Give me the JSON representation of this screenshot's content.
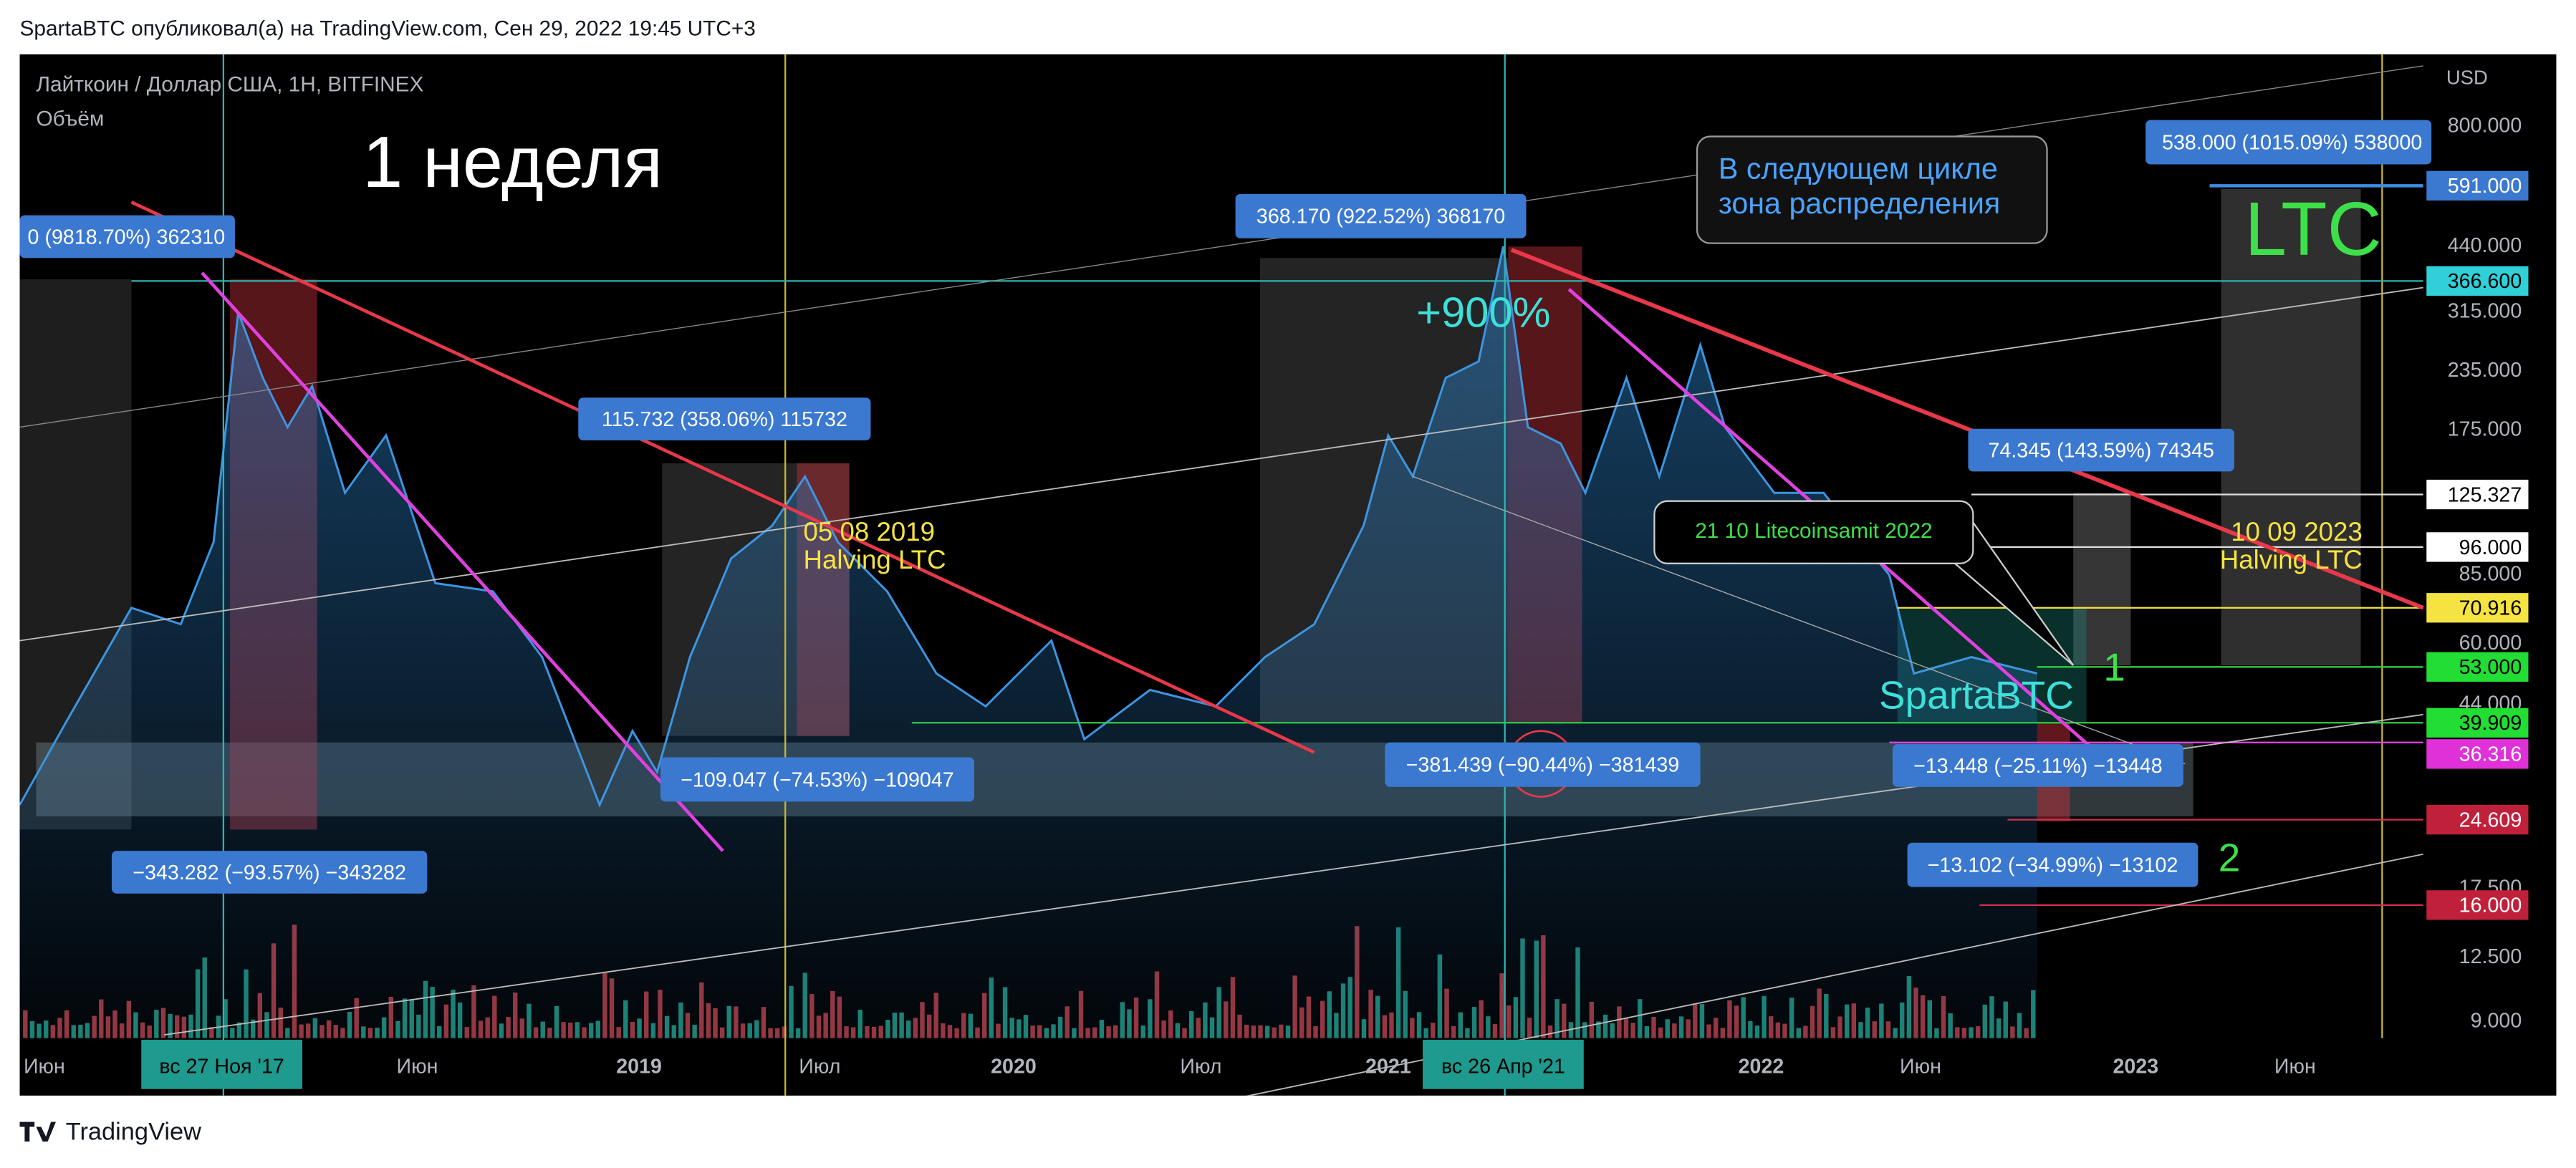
{
  "header": {
    "text": "SpartaBTC опубликовал(а) на TradingView.com, Сен 29, 2022 19:45 UTC+3"
  },
  "chart": {
    "symbol": "Лайткоин / Доллар США, 1H, BITFINEX",
    "indicator": "Объём",
    "title": "1 неделя",
    "gain": "+900%",
    "ticker": "LTC",
    "watermark": "SpartaBTC",
    "halvings": [
      {
        "date": "05 08 2019",
        "label": "Halving LTC"
      },
      {
        "date": "10 09 2023",
        "label": "Halving LTC"
      }
    ],
    "markers": [
      "1",
      "2"
    ],
    "callouts": [
      {
        "lines": [
          "В следующем цикле",
          "зона распределения"
        ]
      },
      {
        "lines": [
          "21 10 Litecoinsamit 2022"
        ]
      }
    ],
    "measures": [
      "0 (9818.70%) 362310",
      "115.732 (358.06%) 115732",
      "368.170 (922.52%) 368170",
      "538.000 (1015.09%) 538000",
      "74.345 (143.59%) 74345",
      "−109.047 (−74.53%) −109047",
      "−343.282 (−93.57%) −343282",
      "−381.439 (−90.44%) −381439",
      "−13.448 (−25.11%) −13448",
      "−13.102 (−34.99%) −13102"
    ],
    "price_axis": {
      "unit": "USD",
      "ticks": [
        "800.000",
        "591.000",
        "440.000",
        "366.600",
        "315.000",
        "235.000",
        "175.000",
        "125.327",
        "96.000",
        "85.000",
        "70.916",
        "60.000",
        "53.000",
        "44.000",
        "39.909",
        "36.316",
        "24.609",
        "17.500",
        "16.000",
        "12.500",
        "9.000"
      ]
    },
    "time_axis": [
      "Июн",
      "вс 27 Ноя '17",
      "Июн",
      "2019",
      "Июл",
      "2020",
      "Июл",
      "2021",
      "вс 26 Апр '21",
      "2022",
      "Июн",
      "2023",
      "Июн"
    ]
  },
  "footer": {
    "brand": "TradingView"
  }
}
